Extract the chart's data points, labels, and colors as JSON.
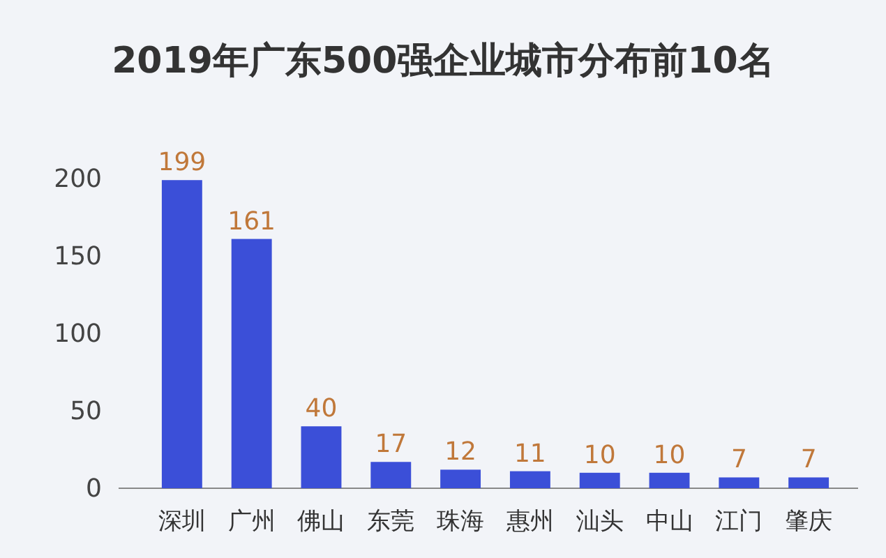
{
  "chart_data": {
    "type": "bar",
    "title": "2019年广东500强企业城市分布前10名",
    "categories": [
      "深圳",
      "广州",
      "佛山",
      "东莞",
      "珠海",
      "惠州",
      "汕头",
      "中山",
      "江门",
      "肇庆"
    ],
    "values": [
      199,
      161,
      40,
      17,
      12,
      11,
      10,
      10,
      7,
      7
    ],
    "color": "#3b4fd8",
    "ylim": [
      0,
      200
    ],
    "yticks": [
      0,
      50,
      100,
      150,
      200
    ],
    "data_labels": true,
    "grid": false
  }
}
